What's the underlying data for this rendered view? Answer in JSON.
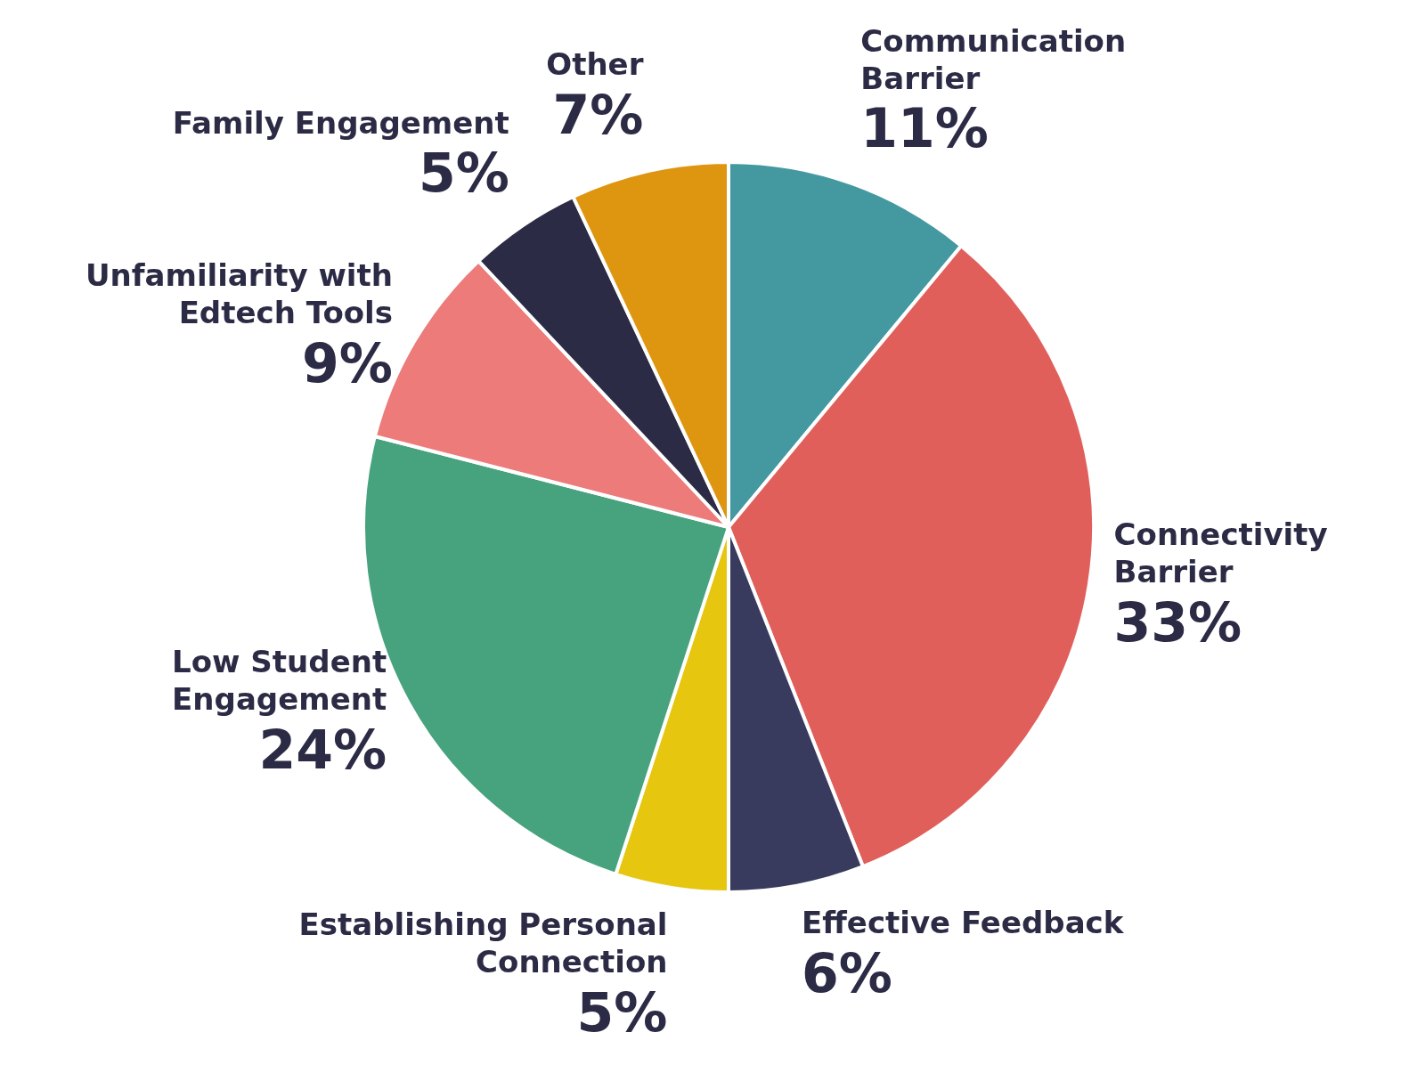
{
  "chart_data": {
    "type": "pie",
    "categories": [
      "Communication Barrier",
      "Connectivity Barrier",
      "Effective Feedback",
      "Establishing Personal Connection",
      "Low Student Engagement",
      "Unfamiliarity with Edtech Tools",
      "Family Engagement",
      "Other"
    ],
    "values": [
      11,
      33,
      6,
      5,
      24,
      9,
      5,
      7
    ],
    "colors": [
      "#4499a1",
      "#e05f5b",
      "#383a5e",
      "#e6c60f",
      "#47a27e",
      "#ec7b7a",
      "#2c2b45",
      "#de950f"
    ],
    "value_labels": [
      "11%",
      "33%",
      "6%",
      "5%",
      "24%",
      "9%",
      "5%",
      "7%"
    ],
    "legend": false
  }
}
